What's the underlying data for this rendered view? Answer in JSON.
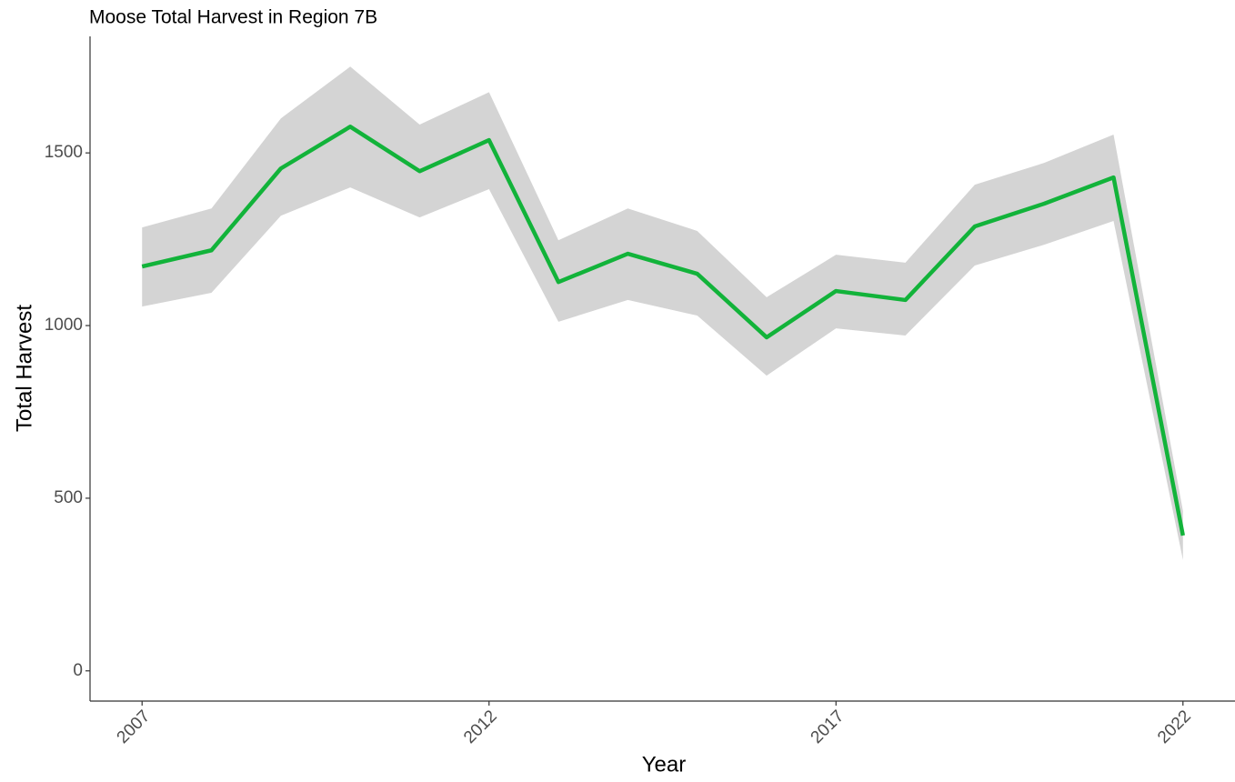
{
  "chart_data": {
    "type": "line",
    "title": "Moose Total Harvest in Region 7B",
    "x_label": "Year",
    "y_label": "Total Harvest",
    "x": [
      2007,
      2008,
      2009,
      2010,
      2011,
      2012,
      2013,
      2014,
      2015,
      2016,
      2017,
      2018,
      2019,
      2020,
      2021,
      2022
    ],
    "values": [
      1171,
      1218,
      1455,
      1576,
      1447,
      1537,
      1126,
      1208,
      1150,
      966,
      1100,
      1074,
      1287,
      1353,
      1429,
      392
    ],
    "lower": [
      1055,
      1095,
      1318,
      1400,
      1313,
      1395,
      1011,
      1074,
      1029,
      855,
      992,
      971,
      1174,
      1234,
      1303,
      321
    ],
    "upper": [
      1284,
      1339,
      1600,
      1750,
      1582,
      1676,
      1247,
      1339,
      1274,
      1082,
      1205,
      1182,
      1408,
      1471,
      1553,
      463
    ],
    "color": "#12b33a",
    "band_color": "#d4d4d4",
    "xlim": [
      2006.25,
      2022.75
    ],
    "xticks": [
      2007,
      2012,
      2017,
      2022
    ],
    "ylim": [
      -87.5,
      1837.5
    ],
    "yticks": [
      0,
      500,
      1000,
      1500
    ]
  }
}
